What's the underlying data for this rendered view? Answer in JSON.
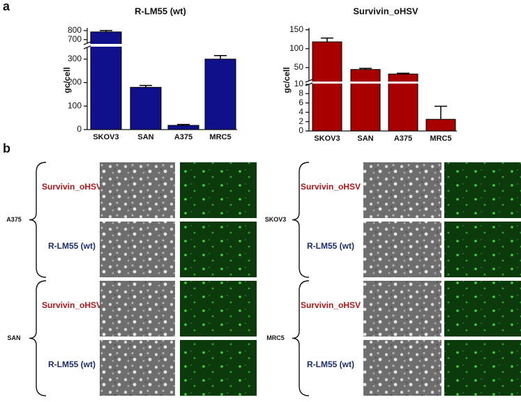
{
  "panel_labels": [
    "a",
    "b"
  ],
  "chart_data": [
    {
      "type": "bar",
      "title": "R-LM55 (wt)",
      "y_label": "gc/cell",
      "categories": [
        "SKOV3",
        "SAN",
        "A375",
        "MRC5"
      ],
      "values": [
        785,
        180,
        18,
        300
      ],
      "errors": [
        15,
        8,
        4,
        15
      ],
      "color": "#10108a",
      "y_segments": [
        {
          "ylim": [
            0,
            350
          ],
          "yticks": [
            0,
            100,
            200,
            300
          ]
        },
        {
          "ylim": [
            660,
            830
          ],
          "yticks": [
            700,
            800
          ]
        }
      ]
    },
    {
      "type": "bar",
      "title": "Survivin_oHSV",
      "y_label": "gc/cell",
      "categories": [
        "SKOV3",
        "SAN",
        "A375",
        "MRC5"
      ],
      "values": [
        118,
        45,
        33,
        2.5
      ],
      "errors": [
        10,
        3,
        2,
        2.8
      ],
      "color": "#a80000",
      "y_segments": [
        {
          "ylim": [
            0,
            10
          ],
          "yticks": [
            0,
            2,
            4,
            6,
            8,
            10
          ]
        },
        {
          "ylim": [
            15,
            155
          ],
          "yticks": [
            50,
            100,
            150
          ]
        }
      ]
    }
  ],
  "panel_b": {
    "groups": [
      {
        "cell_line": "A375",
        "rows": [
          "Survivin_oHSV",
          "R-LM55 (wt)"
        ]
      },
      {
        "cell_line": "SAN",
        "rows": [
          "Survivin_oHSV",
          "R-LM55 (wt)"
        ]
      },
      {
        "cell_line": "SKOV3",
        "rows": [
          "Survivin_oHSV",
          "R-LM55 (wt)"
        ]
      },
      {
        "cell_line": "MRC5",
        "rows": [
          "Survivin_oHSV",
          "R-LM55 (wt)"
        ]
      }
    ]
  }
}
